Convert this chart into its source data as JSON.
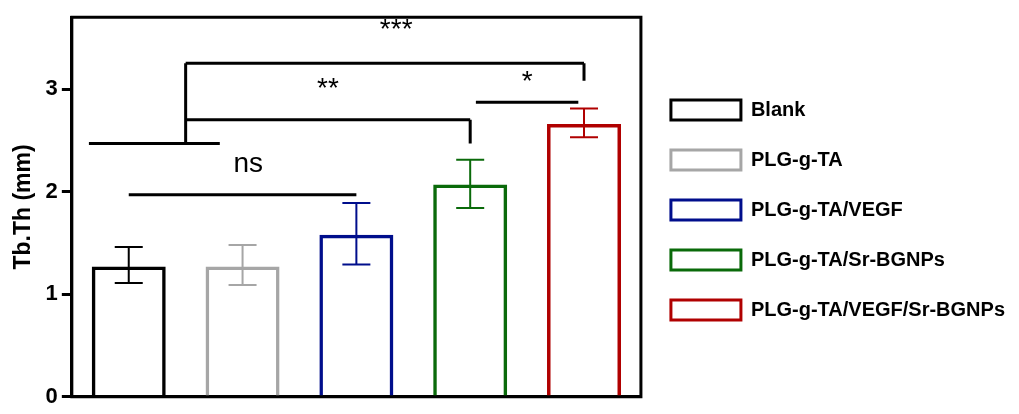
{
  "chart_data": {
    "type": "bar",
    "ylabel": "Tb.Th (mm)",
    "categories": [
      null,
      null,
      null,
      null,
      null
    ],
    "stacked": true,
    "series": [
      {
        "name": "Blank",
        "color": "#000000",
        "values": [
          1.27,
          null,
          null,
          null,
          null
        ],
        "errors": [
          [
            1.11,
            1.46
          ],
          null,
          null,
          null,
          null
        ]
      },
      {
        "name": "PLG-g-TA",
        "color": "#a6a6a6",
        "values": [
          null,
          1.27,
          null,
          null,
          null
        ],
        "errors": [
          null,
          [
            1.09,
            1.48
          ],
          null,
          null,
          null
        ]
      },
      {
        "name": "PLG-g-TA/VEGF",
        "color": "#000e8c",
        "values": [
          null,
          null,
          1.58,
          null,
          null
        ],
        "errors": [
          null,
          null,
          [
            1.29,
            1.89
          ],
          null,
          null
        ]
      },
      {
        "name": "PLG-g-TA/Sr-BGNPs",
        "color": "#0a6a0a",
        "values": [
          null,
          null,
          null,
          2.07,
          null
        ],
        "errors": [
          null,
          null,
          null,
          [
            1.84,
            2.31
          ],
          null
        ]
      },
      {
        "name": "PLG-g-TA/VEGF/Sr-BGNPs",
        "color": "#b00000",
        "values": [
          null,
          null,
          null,
          null,
          2.66
        ],
        "errors": [
          null,
          null,
          null,
          null,
          [
            2.53,
            2.81
          ]
        ]
      }
    ],
    "ylim": [
      0,
      3.7
    ],
    "yticks": [
      0,
      1,
      2,
      3
    ],
    "tick_labels": "y",
    "grid": false,
    "legend": "right",
    "annotations": [
      "ns",
      "**",
      "***",
      "*"
    ]
  }
}
